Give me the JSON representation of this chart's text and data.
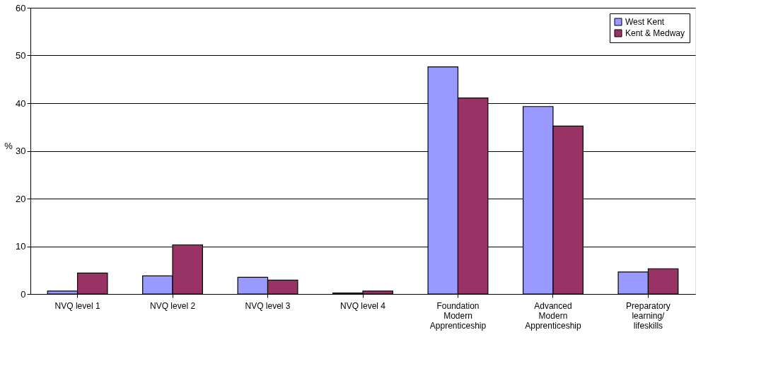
{
  "chart_data": {
    "type": "bar",
    "ylabel": "%",
    "categories": [
      "NVQ level 1",
      "NVQ level 2",
      "NVQ level 3",
      "NVQ level 4",
      "Foundation Modern Apprenticeship",
      "Advanced Modern Apprenticeship",
      "Preparatory learning/ lifeskills"
    ],
    "series": [
      {
        "name": "West Kent",
        "color": "#9999ff",
        "values": [
          0.6,
          3.8,
          3.5,
          0.2,
          47.6,
          39.3,
          4.6
        ]
      },
      {
        "name": "Kent & Medway",
        "color": "#993366",
        "values": [
          4.4,
          10.3,
          2.9,
          0.6,
          41.1,
          35.2,
          5.3
        ]
      }
    ],
    "ylim": [
      0,
      60
    ],
    "yticks": [
      0,
      10,
      20,
      30,
      40,
      50,
      60
    ],
    "grid": "y",
    "legend": "top right"
  }
}
